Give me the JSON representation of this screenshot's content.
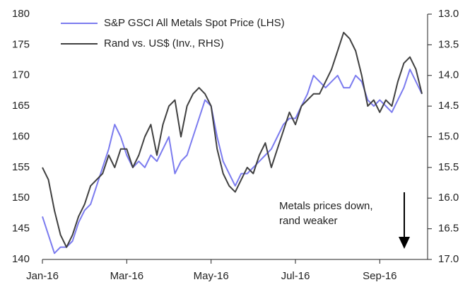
{
  "chart_data": {
    "type": "line",
    "categories": [
      "Jan-16",
      null,
      null,
      null,
      null,
      null,
      null,
      null,
      null,
      null,
      null,
      null,
      null,
      null,
      "Mar-16",
      null,
      null,
      null,
      null,
      null,
      null,
      null,
      null,
      null,
      null,
      null,
      null,
      null,
      "May-16",
      null,
      null,
      null,
      null,
      null,
      null,
      null,
      null,
      null,
      null,
      null,
      null,
      null,
      "Jul-16",
      null,
      null,
      null,
      null,
      null,
      null,
      null,
      null,
      null,
      null,
      null,
      null,
      null,
      "Sep-16",
      null,
      null,
      null,
      null,
      null,
      null,
      null
    ],
    "series": [
      {
        "name": "S&P GSCI All Metals Spot Price (LHS)",
        "color": "#7b7bef",
        "values": [
          147,
          144,
          141,
          142,
          142,
          143,
          146,
          148,
          149,
          152,
          155,
          158,
          162,
          160,
          157,
          155,
          156,
          155,
          157,
          156,
          158,
          160,
          154,
          156,
          157,
          160,
          163,
          166,
          165,
          160,
          156,
          154,
          152,
          154,
          154,
          155,
          156,
          157,
          158,
          160,
          162,
          163,
          163,
          165,
          167,
          170,
          169,
          168,
          169,
          170,
          168,
          168,
          170,
          169,
          166,
          165,
          166,
          165,
          164,
          166,
          168,
          171,
          169,
          167
        ]
      },
      {
        "name": "Rand vs. US$ (Inv., RHS)",
        "color": "#404040",
        "axis": "y2",
        "values": [
          15.5,
          15.7,
          16.2,
          16.6,
          16.8,
          16.6,
          16.3,
          16.1,
          15.8,
          15.7,
          15.6,
          15.3,
          15.5,
          15.2,
          15.2,
          15.5,
          15.3,
          15.0,
          14.8,
          15.3,
          14.8,
          14.5,
          14.4,
          15.0,
          14.5,
          14.3,
          14.2,
          14.3,
          14.5,
          15.2,
          15.6,
          15.8,
          15.9,
          15.7,
          15.5,
          15.6,
          15.3,
          15.1,
          15.5,
          15.2,
          14.9,
          14.6,
          14.8,
          14.5,
          14.4,
          14.3,
          14.3,
          14.1,
          13.9,
          13.6,
          13.3,
          13.4,
          13.6,
          14.0,
          14.5,
          14.4,
          14.6,
          14.4,
          14.5,
          14.1,
          13.8,
          13.7,
          13.9,
          14.3
        ]
      }
    ],
    "ylim": [
      140,
      180
    ],
    "yticks": [
      140,
      145,
      150,
      155,
      160,
      165,
      170,
      175,
      180
    ],
    "y2lim": [
      17,
      13
    ],
    "y2ticks": [
      {
        "value": 17,
        "label": "17.0"
      },
      16.5,
      {
        "value": 16,
        "label": "16.0"
      },
      15.5,
      {
        "value": 15,
        "label": "15.0"
      },
      14.5,
      {
        "value": 14,
        "label": "14.0"
      },
      13.5,
      {
        "value": 13,
        "label": "13.0"
      }
    ],
    "annotation": [
      "Metals prices down,",
      "rand weaker"
    ],
    "legend": "upper left",
    "grid": false
  }
}
